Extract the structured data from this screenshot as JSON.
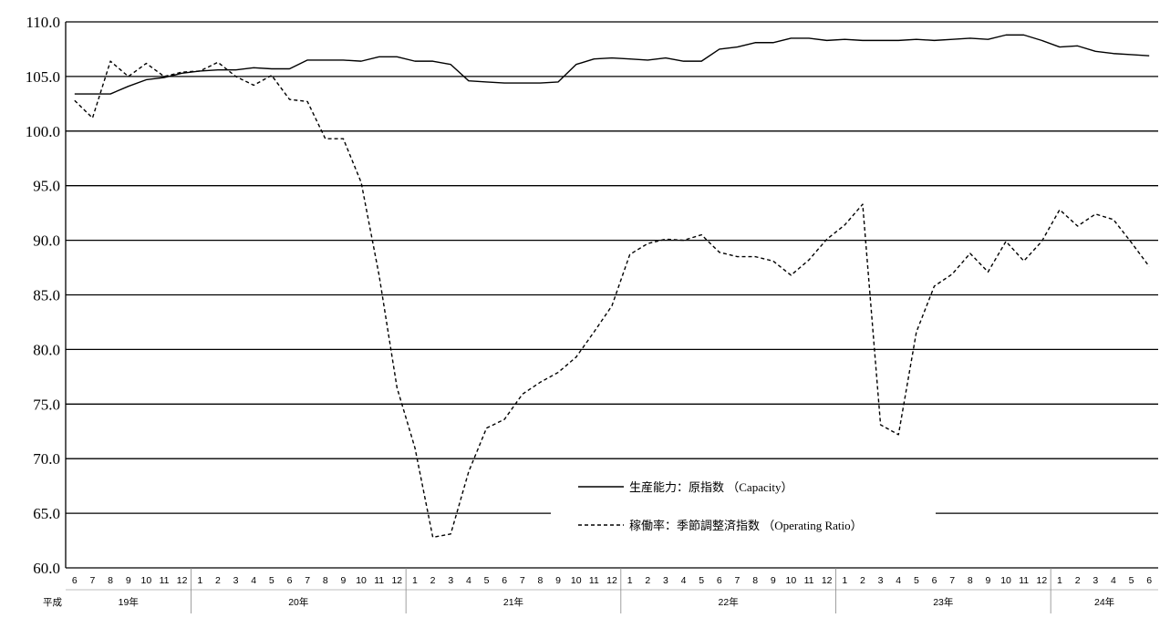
{
  "chart_data": {
    "type": "line",
    "ylim": [
      60,
      110
    ],
    "y_ticks": [
      "110.0",
      "105.0",
      "100.0",
      "95.0",
      "90.0",
      "85.0",
      "80.0",
      "75.0",
      "70.0",
      "65.0",
      "60.0"
    ],
    "y_tick_values": [
      110,
      105,
      100,
      95,
      90,
      85,
      80,
      75,
      70,
      65,
      60
    ],
    "grid": "horizontal",
    "era_label": "平成",
    "months": [
      "6",
      "7",
      "8",
      "9",
      "10",
      "11",
      "12",
      "1",
      "2",
      "3",
      "4",
      "5",
      "6",
      "7",
      "8",
      "9",
      "10",
      "11",
      "12",
      "1",
      "2",
      "3",
      "4",
      "5",
      "6",
      "7",
      "8",
      "9",
      "10",
      "11",
      "12",
      "1",
      "2",
      "3",
      "4",
      "5",
      "6",
      "7",
      "8",
      "9",
      "10",
      "11",
      "12",
      "1",
      "2",
      "3",
      "4",
      "5",
      "6",
      "7",
      "8",
      "9",
      "10",
      "11",
      "12",
      "1",
      "2",
      "3",
      "4",
      "5",
      "6"
    ],
    "years": [
      {
        "label": "19年",
        "count": 7
      },
      {
        "label": "20年",
        "count": 12
      },
      {
        "label": "21年",
        "count": 12
      },
      {
        "label": "22年",
        "count": 12
      },
      {
        "label": "23年",
        "count": 12
      },
      {
        "label": "24年",
        "count": 6
      }
    ],
    "legend_placement": "lower-center",
    "series": [
      {
        "name": "生産能力：原指数 （Capacity）",
        "style": "solid",
        "color": "#000000",
        "values": [
          103.4,
          103.4,
          103.4,
          104.1,
          104.7,
          104.9,
          105.3,
          105.5,
          105.6,
          105.6,
          105.8,
          105.7,
          105.7,
          106.5,
          106.5,
          106.5,
          106.4,
          106.8,
          106.8,
          106.4,
          106.4,
          106.1,
          104.6,
          104.5,
          104.4,
          104.4,
          104.4,
          104.5,
          106.1,
          106.6,
          106.7,
          106.6,
          106.5,
          106.7,
          106.4,
          106.4,
          107.5,
          107.7,
          108.1,
          108.1,
          108.5,
          108.5,
          108.3,
          108.4,
          108.3,
          108.3,
          108.3,
          108.4,
          108.3,
          108.4,
          108.5,
          108.4,
          108.8,
          108.8,
          108.3,
          107.7,
          107.8,
          107.3,
          107.1,
          107.0,
          106.9
        ]
      },
      {
        "name": "稼働率：季節調整済指数 （Operating Ratio）",
        "style": "dashed",
        "color": "#000000",
        "values": [
          102.8,
          101.2,
          106.4,
          105.0,
          106.2,
          105.0,
          105.4,
          105.5,
          106.3,
          105.0,
          104.2,
          105.1,
          102.9,
          102.7,
          99.3,
          99.3,
          95.3,
          86.8,
          76.5,
          71.0,
          62.8,
          63.1,
          68.8,
          72.8,
          73.6,
          75.9,
          77.0,
          77.9,
          79.3,
          81.6,
          84.0,
          88.7,
          89.7,
          90.1,
          90.0,
          90.5,
          88.9,
          88.5,
          88.5,
          88.1,
          86.8,
          88.2,
          90.1,
          91.4,
          93.3,
          73.1,
          72.2,
          81.6,
          85.8,
          86.9,
          88.8,
          87.1,
          89.9,
          88.1,
          89.9,
          92.8,
          91.3,
          92.4,
          91.9,
          89.8,
          87.6
        ]
      }
    ]
  }
}
